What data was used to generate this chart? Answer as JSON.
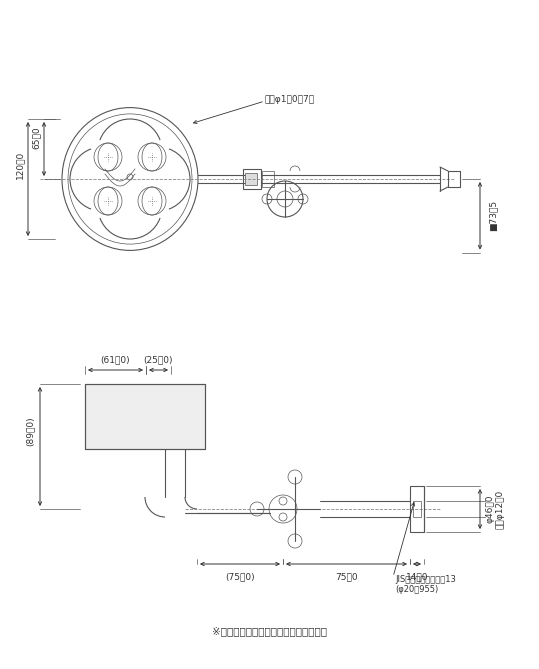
{
  "bg_color": "#ffffff",
  "line_color": "#555555",
  "dim_color": "#333333",
  "text_color": "#333333",
  "figsize": [
    5.39,
    6.69
  ],
  "dpi": 100,
  "annotation_note": "※１：（　）内寸法は参考寸法である。",
  "top_label_hole": "穴径φ1．0－7穴",
  "dim_120": "120．0",
  "dim_65": "65．0",
  "dim_73_5": "■73．5",
  "dim_61": "(61．0)",
  "dim_25": "(25．0)",
  "dim_89": "(89．0)",
  "dim_phi12": "内径φ12．0",
  "dim_phi46": "φ46．0",
  "dim_75p": "(75．0)",
  "dim_75": "75．0",
  "dim_14": "14．0",
  "jis_label": "JIS給水栖取付ねじ、13",
  "jis_label2": "(φ20．955)"
}
